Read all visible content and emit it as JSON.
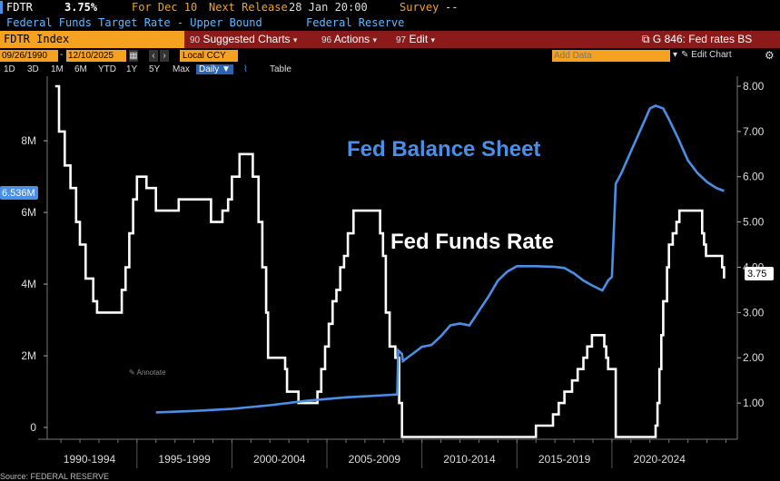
{
  "header": {
    "ticker": "FDTR",
    "last_value": "3.75%",
    "for_date": "For Dec 10",
    "next_release_label": "Next Release",
    "next_release_value": "28 Jan 20:00",
    "survey_label": "Survey",
    "survey_value": "--",
    "description": "Federal Funds Target Rate - Upper Bound",
    "source_name": "Federal Reserve"
  },
  "toolbar": {
    "index_name": "FDTR Index",
    "suggested_num": "90",
    "suggested_label": "Suggested Charts",
    "actions_num": "96",
    "actions_label": "Actions",
    "edit_num": "97",
    "edit_label": "Edit",
    "chart_name": "G 846: Fed rates BS"
  },
  "daterow": {
    "start_date": "09/26/1990",
    "end_date": "12/10/2025",
    "currency": "Local CCY",
    "add_data_placeholder": "Add Data",
    "edit_chart": "Edit Chart"
  },
  "ranges": {
    "b1d": "1D",
    "b3d": "3D",
    "b1m": "1M",
    "b6m": "6M",
    "bytd": "YTD",
    "b1y": "1Y",
    "b5y": "5Y",
    "bmax": "Max",
    "bfreq": "Daily",
    "btable": "Table"
  },
  "annotate_label": "Annotate",
  "source_note": "Source: FEDERAL RESERVE",
  "colors": {
    "balance": "#4a8fe7",
    "rate": "#ffffff",
    "accent": "#f4a21f",
    "toolbar": "#8b1b1b"
  },
  "chart_data": {
    "type": "line",
    "title": "",
    "x_tick_labels": [
      "1990-1994",
      "1995-1999",
      "2000-2004",
      "2005-2009",
      "2010-2014",
      "2015-2019",
      "2020-2024"
    ],
    "left_axis": {
      "ticks": [
        "0",
        "2M",
        "4M",
        "6M",
        "8M"
      ],
      "ylim": [
        0,
        9.8
      ]
    },
    "right_axis": {
      "ticks": [
        "1.00",
        "2.00",
        "3.00",
        "4.00",
        "5.00",
        "6.00",
        "7.00",
        "8.00"
      ],
      "ylim": [
        0.2,
        8.1
      ]
    },
    "balance_label_value": "6.536M",
    "rate_label_value": "3.75",
    "series": [
      {
        "name": "Fed Balance Sheet",
        "axis": "left",
        "points": [
          [
            1996.0,
            0.42
          ],
          [
            1998,
            0.46
          ],
          [
            2000,
            0.52
          ],
          [
            2002,
            0.62
          ],
          [
            2004,
            0.75
          ],
          [
            2006,
            0.84
          ],
          [
            2008.0,
            0.9
          ],
          [
            2008.7,
            0.92
          ],
          [
            2008.75,
            2.15
          ],
          [
            2008.95,
            2.05
          ],
          [
            2009.0,
            1.85
          ],
          [
            2009.5,
            2.05
          ],
          [
            2010.0,
            2.25
          ],
          [
            2010.5,
            2.3
          ],
          [
            2011.0,
            2.55
          ],
          [
            2011.5,
            2.85
          ],
          [
            2012.0,
            2.9
          ],
          [
            2012.5,
            2.85
          ],
          [
            2013.0,
            3.25
          ],
          [
            2013.5,
            3.65
          ],
          [
            2014.0,
            4.1
          ],
          [
            2014.5,
            4.35
          ],
          [
            2015.0,
            4.5
          ],
          [
            2016,
            4.5
          ],
          [
            2017,
            4.48
          ],
          [
            2017.5,
            4.45
          ],
          [
            2018.0,
            4.3
          ],
          [
            2018.5,
            4.1
          ],
          [
            2019.0,
            3.95
          ],
          [
            2019.5,
            3.82
          ],
          [
            2019.8,
            4.1
          ],
          [
            2020.0,
            4.2
          ],
          [
            2020.2,
            6.8
          ],
          [
            2020.5,
            7.1
          ],
          [
            2021.0,
            7.7
          ],
          [
            2021.5,
            8.3
          ],
          [
            2022.0,
            8.9
          ],
          [
            2022.3,
            8.98
          ],
          [
            2022.7,
            8.9
          ],
          [
            2023.0,
            8.6
          ],
          [
            2023.5,
            8.05
          ],
          [
            2024.0,
            7.45
          ],
          [
            2024.5,
            7.1
          ],
          [
            2025.0,
            6.85
          ],
          [
            2025.5,
            6.68
          ],
          [
            2025.9,
            6.6
          ]
        ]
      },
      {
        "name": "Fed Funds Rate",
        "axis": "right",
        "points": [
          [
            1990.7,
            8.0
          ],
          [
            1990.9,
            7.0
          ],
          [
            1991.2,
            6.25
          ],
          [
            1991.5,
            5.75
          ],
          [
            1991.8,
            5.0
          ],
          [
            1992.0,
            4.5
          ],
          [
            1992.3,
            3.75
          ],
          [
            1992.7,
            3.25
          ],
          [
            1992.9,
            3.0
          ],
          [
            1994.0,
            3.0
          ],
          [
            1994.2,
            3.5
          ],
          [
            1994.4,
            4.0
          ],
          [
            1994.6,
            4.75
          ],
          [
            1994.8,
            5.5
          ],
          [
            1995.0,
            6.0
          ],
          [
            1995.5,
            5.75
          ],
          [
            1996.0,
            5.25
          ],
          [
            1997.0,
            5.25
          ],
          [
            1997.2,
            5.5
          ],
          [
            1998.7,
            5.5
          ],
          [
            1998.9,
            5.0
          ],
          [
            1999.3,
            5.0
          ],
          [
            1999.5,
            5.25
          ],
          [
            1999.8,
            5.5
          ],
          [
            2000.0,
            6.0
          ],
          [
            2000.4,
            6.5
          ],
          [
            2000.9,
            6.5
          ],
          [
            2001.1,
            6.0
          ],
          [
            2001.4,
            5.0
          ],
          [
            2001.6,
            4.0
          ],
          [
            2001.8,
            3.0
          ],
          [
            2001.9,
            2.0
          ],
          [
            2002.8,
            1.75
          ],
          [
            2002.9,
            1.25
          ],
          [
            2003.5,
            1.0
          ],
          [
            2004.4,
            1.0
          ],
          [
            2004.5,
            1.25
          ],
          [
            2004.7,
            1.75
          ],
          [
            2004.9,
            2.25
          ],
          [
            2005.1,
            2.75
          ],
          [
            2005.3,
            3.25
          ],
          [
            2005.5,
            3.5
          ],
          [
            2005.7,
            4.0
          ],
          [
            2005.9,
            4.25
          ],
          [
            2006.1,
            4.75
          ],
          [
            2006.4,
            5.25
          ],
          [
            2007.6,
            5.25
          ],
          [
            2007.8,
            4.75
          ],
          [
            2007.95,
            4.25
          ],
          [
            2008.1,
            3.0
          ],
          [
            2008.3,
            2.25
          ],
          [
            2008.6,
            2.0
          ],
          [
            2008.8,
            1.0
          ],
          [
            2008.95,
            0.25
          ],
          [
            2015.9,
            0.25
          ],
          [
            2016.0,
            0.5
          ],
          [
            2016.9,
            0.75
          ],
          [
            2017.2,
            1.0
          ],
          [
            2017.5,
            1.25
          ],
          [
            2017.9,
            1.5
          ],
          [
            2018.2,
            1.75
          ],
          [
            2018.5,
            2.0
          ],
          [
            2018.7,
            2.25
          ],
          [
            2018.95,
            2.5
          ],
          [
            2019.5,
            2.5
          ],
          [
            2019.6,
            2.25
          ],
          [
            2019.7,
            2.0
          ],
          [
            2019.8,
            1.75
          ],
          [
            2020.2,
            0.25
          ],
          [
            2022.2,
            0.25
          ],
          [
            2022.3,
            0.5
          ],
          [
            2022.4,
            1.0
          ],
          [
            2022.5,
            1.75
          ],
          [
            2022.6,
            2.5
          ],
          [
            2022.7,
            3.25
          ],
          [
            2022.9,
            4.0
          ],
          [
            2023.0,
            4.5
          ],
          [
            2023.2,
            4.75
          ],
          [
            2023.4,
            5.0
          ],
          [
            2023.55,
            5.25
          ],
          [
            2024.7,
            5.25
          ],
          [
            2024.75,
            4.75
          ],
          [
            2024.85,
            4.5
          ],
          [
            2024.95,
            4.25
          ],
          [
            2025.7,
            4.25
          ],
          [
            2025.8,
            4.0
          ],
          [
            2025.9,
            3.75
          ]
        ]
      }
    ],
    "annotations": [
      "Fed Balance Sheet",
      "Fed Funds Rate"
    ],
    "grid": true,
    "legend": "none"
  }
}
